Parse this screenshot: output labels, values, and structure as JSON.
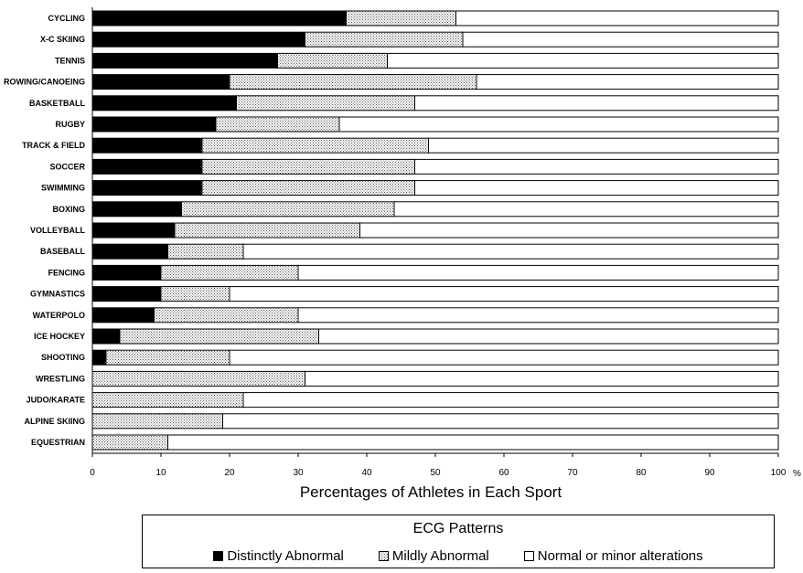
{
  "chart_data": {
    "type": "bar",
    "orientation": "horizontal",
    "stacked": true,
    "categories": [
      "CYCLING",
      "X-C SKIING",
      "TENNIS",
      "ROWING/CANOEING",
      "BASKETBALL",
      "RUGBY",
      "TRACK & FIELD",
      "SOCCER",
      "SWIMMING",
      "BOXING",
      "VOLLEYBALL",
      "BASEBALL",
      "FENCING",
      "GYMNASTICS",
      "WATERPOLO",
      "ICE HOCKEY",
      "SHOOTING",
      "WRESTLING",
      "JUDO/KARATE",
      "ALPINE SKIING",
      "EQUESTRIAN"
    ],
    "series": [
      {
        "name": "Distinctly Abnormal",
        "color": "#000000",
        "pattern": "solid",
        "values": [
          37,
          31,
          27,
          20,
          21,
          18,
          16,
          16,
          16,
          13,
          12,
          11,
          10,
          10,
          9,
          4,
          2,
          0,
          0,
          0,
          0
        ]
      },
      {
        "name": "Mildly Abnormal",
        "color": "#d9d9d9",
        "pattern": "dotted",
        "values": [
          16,
          23,
          16,
          36,
          26,
          18,
          33,
          31,
          31,
          31,
          27,
          11,
          20,
          10,
          21,
          29,
          18,
          31,
          22,
          19,
          11
        ]
      },
      {
        "name": "Normal or minor alterations",
        "color": "#ffffff",
        "pattern": "solid",
        "values": [
          47,
          46,
          57,
          44,
          53,
          64,
          51,
          53,
          53,
          56,
          61,
          78,
          70,
          80,
          70,
          67,
          80,
          69,
          78,
          81,
          89
        ]
      }
    ],
    "xlabel": "Percentages of Athletes in Each Sport",
    "x_unit": "%",
    "xlim": [
      0,
      100
    ],
    "xticks": [
      0,
      10,
      20,
      30,
      40,
      50,
      60,
      70,
      80,
      90,
      100
    ],
    "grid": false,
    "legend": {
      "title": "ECG Patterns",
      "position": "bottom"
    }
  }
}
